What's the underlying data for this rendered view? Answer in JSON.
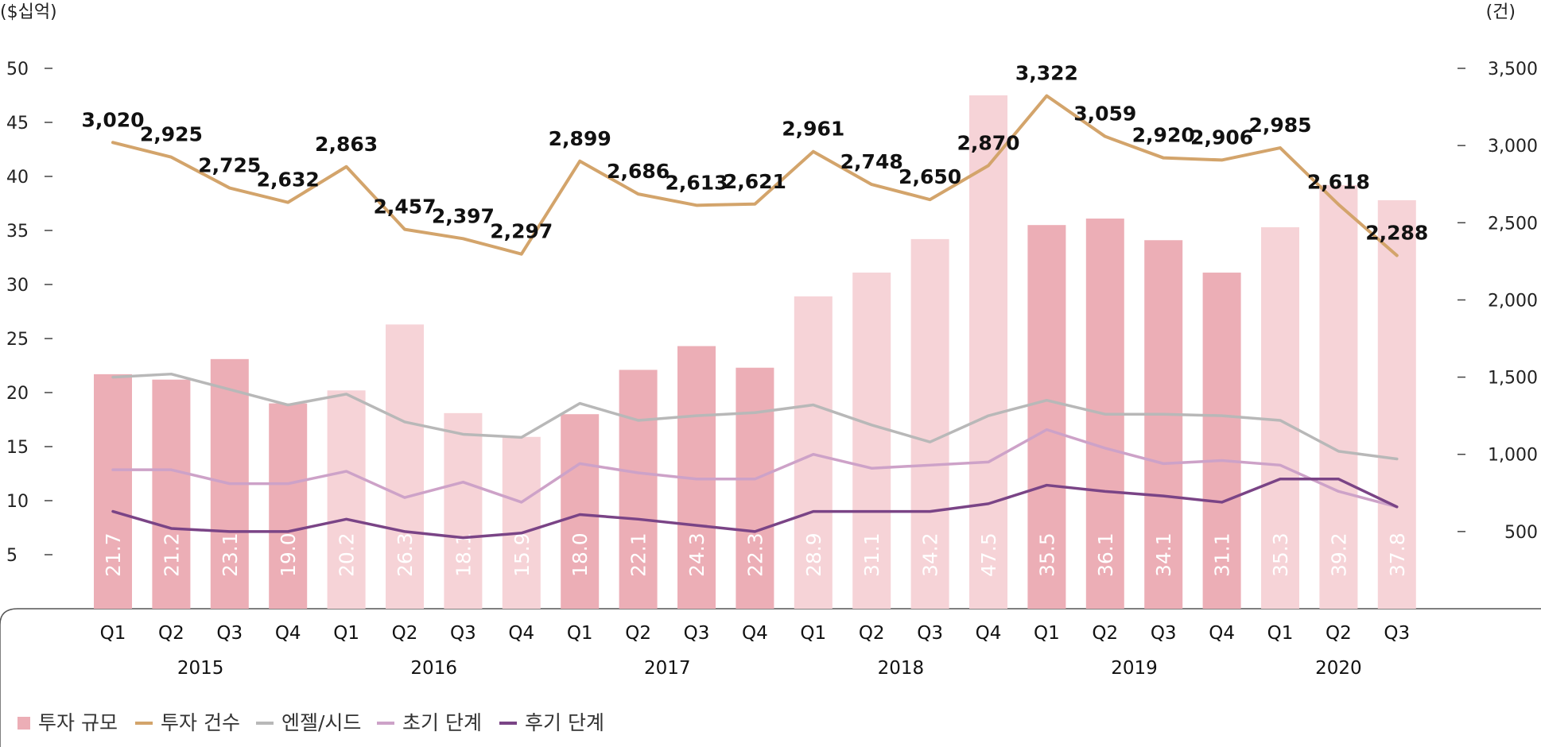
{
  "chart_data": {
    "type": "bar+line",
    "left_unit": "($십억)",
    "right_unit": "(건)",
    "left_ticks": [
      "5",
      "10",
      "15",
      "20",
      "25",
      "30",
      "35",
      "40",
      "45",
      "50"
    ],
    "right_ticks": [
      "500",
      "1,000",
      "1,500",
      "2,000",
      "2,500",
      "3,000",
      "3,500"
    ],
    "left_ylim": [
      0,
      50
    ],
    "right_ylim": [
      0,
      3500
    ],
    "quarters": [
      "Q1",
      "Q2",
      "Q3",
      "Q4",
      "Q1",
      "Q2",
      "Q3",
      "Q4",
      "Q1",
      "Q2",
      "Q3",
      "Q4",
      "Q1",
      "Q2",
      "Q3",
      "Q4",
      "Q1",
      "Q2",
      "Q3",
      "Q4",
      "Q1",
      "Q2",
      "Q3"
    ],
    "years": [
      {
        "label": "2015",
        "start": 0,
        "end": 3
      },
      {
        "label": "2016",
        "start": 4,
        "end": 7
      },
      {
        "label": "2017",
        "start": 8,
        "end": 11
      },
      {
        "label": "2018",
        "start": 12,
        "end": 15
      },
      {
        "label": "2019",
        "start": 16,
        "end": 19
      },
      {
        "label": "2020",
        "start": 20,
        "end": 22
      }
    ],
    "bar_series": {
      "name": "투자 규모",
      "values": [
        21.7,
        21.2,
        23.1,
        19.0,
        20.2,
        26.3,
        18.1,
        15.9,
        18.0,
        22.1,
        24.3,
        22.3,
        28.9,
        31.1,
        34.2,
        47.5,
        35.5,
        36.1,
        34.1,
        31.1,
        35.3,
        39.2,
        37.8
      ],
      "labels": [
        "21.7",
        "21.2",
        "23.1",
        "19.0",
        "20.2",
        "26.3",
        "18.1",
        "15.9",
        "18.0",
        "22.1",
        "24.3",
        "22.3",
        "28.9",
        "31.1",
        "34.2",
        "47.5",
        "35.5",
        "36.1",
        "34.1",
        "31.1",
        "35.3",
        "39.2",
        "37.8"
      ],
      "dark_color": "#ecaeb6",
      "light_color": "#f6d3d7",
      "dark_flags": [
        1,
        1,
        1,
        1,
        0,
        0,
        0,
        0,
        1,
        1,
        1,
        1,
        0,
        0,
        0,
        0,
        1,
        1,
        1,
        1,
        0,
        0,
        0
      ]
    },
    "count_series": {
      "name": "투자 건수",
      "values": [
        3020,
        2925,
        2725,
        2632,
        2863,
        2457,
        2397,
        2297,
        2899,
        2686,
        2613,
        2621,
        2961,
        2748,
        2650,
        2870,
        3322,
        3059,
        2920,
        2906,
        2985,
        2618,
        2288
      ],
      "labels": [
        "3,020",
        "2,925",
        "2,725",
        "2,632",
        "2,863",
        "2,457",
        "2,397",
        "2,297",
        "2,899",
        "2,686",
        "2,613",
        "2,621",
        "2,961",
        "2,748",
        "2,650",
        "2,870",
        "3,322",
        "3,059",
        "2,920",
        "2,906",
        "2,985",
        "2,618",
        "2,288"
      ],
      "color": "#d3a46b"
    },
    "stage_series": [
      {
        "name": "엔젤/시드",
        "color": "#b8b8b8",
        "values": [
          1500,
          1520,
          1420,
          1320,
          1390,
          1210,
          1130,
          1110,
          1330,
          1220,
          1250,
          1270,
          1320,
          1190,
          1080,
          1250,
          1350,
          1260,
          1260,
          1250,
          1220,
          1020,
          970
        ]
      },
      {
        "name": "초기 단계",
        "color": "#cda2c8",
        "values": [
          900,
          900,
          810,
          810,
          890,
          720,
          820,
          690,
          940,
          880,
          840,
          840,
          1000,
          910,
          930,
          950,
          1160,
          1040,
          940,
          960,
          930,
          760,
          660
        ]
      },
      {
        "name": "후기 단계",
        "color": "#7a4486",
        "values": [
          630,
          520,
          500,
          500,
          580,
          500,
          460,
          490,
          610,
          580,
          540,
          500,
          630,
          630,
          630,
          680,
          800,
          760,
          730,
          690,
          840,
          840,
          660
        ]
      }
    ],
    "legend": [
      "투자 규모",
      "투자 건수",
      "엔젤/시드",
      "초기 단계",
      "후기 단계"
    ],
    "legend_position": "bottom-left"
  }
}
